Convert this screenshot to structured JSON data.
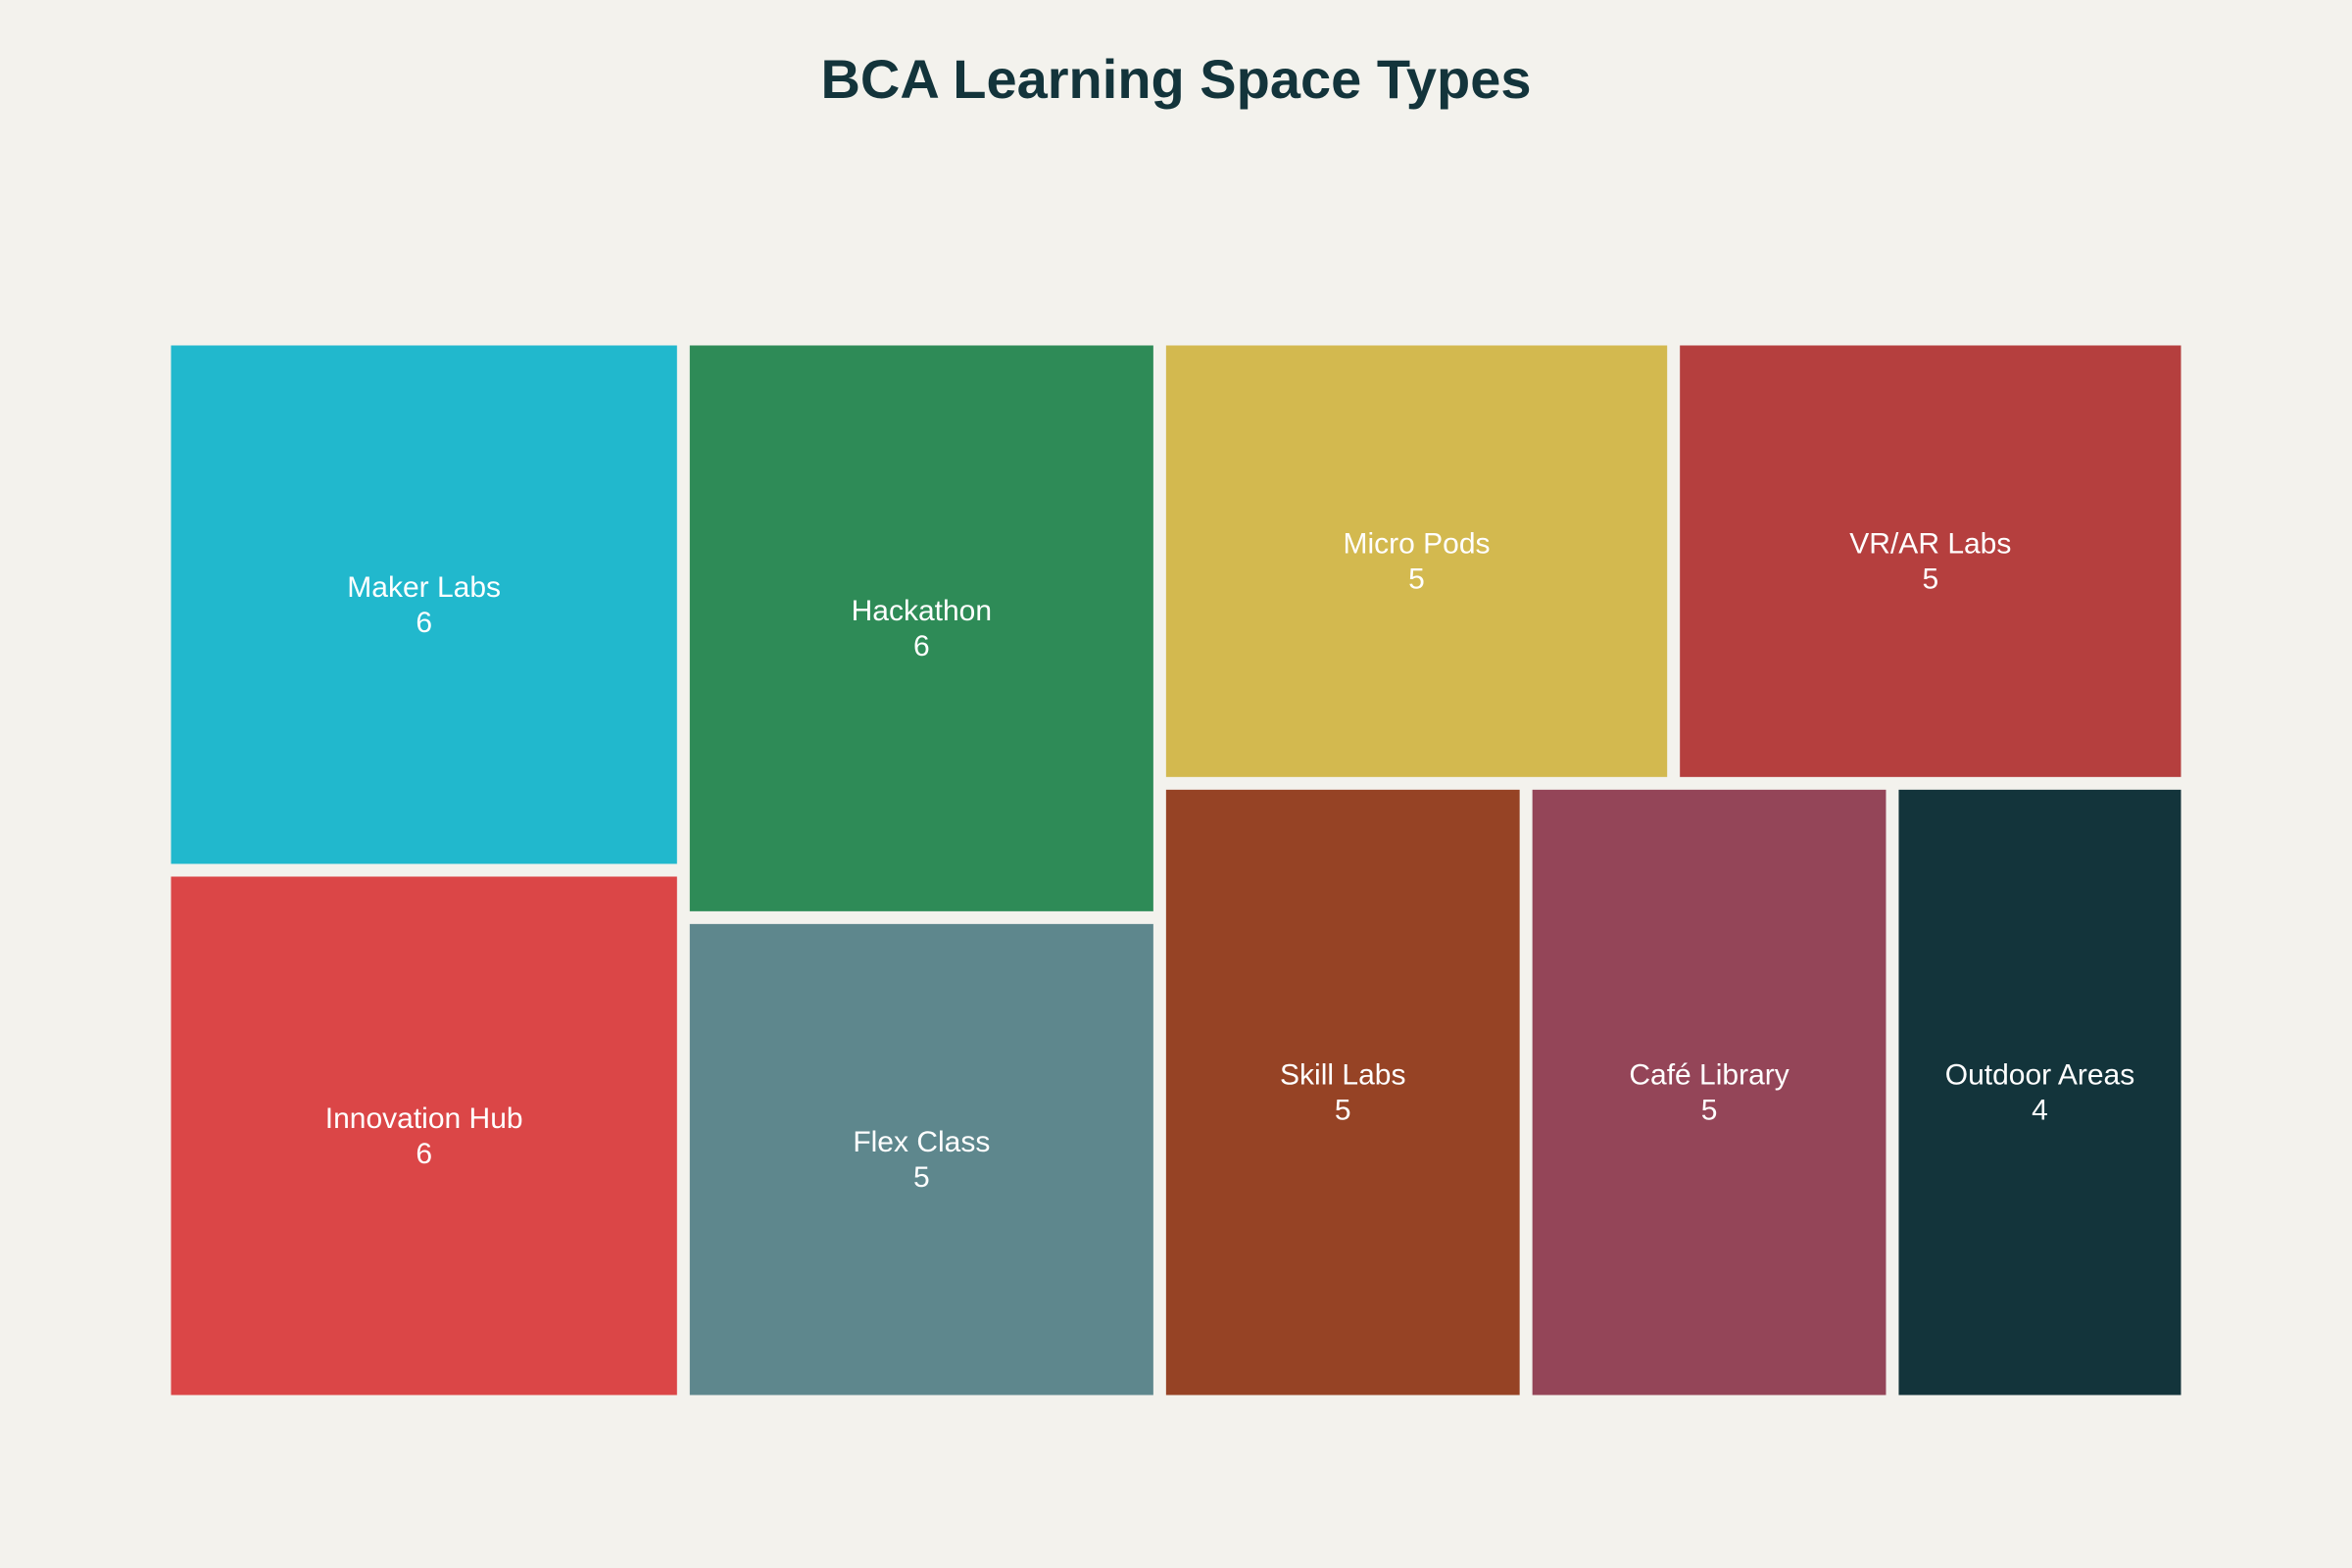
{
  "chart_data": {
    "type": "treemap",
    "title": "BCA Learning Space Types",
    "items": [
      {
        "label": "Maker Labs",
        "value": 6,
        "color": "#21b8cd"
      },
      {
        "label": "Innovation Hub",
        "value": 6,
        "color": "#db4647"
      },
      {
        "label": "Hackathon",
        "value": 6,
        "color": "#2e8b57"
      },
      {
        "label": "Flex Class",
        "value": 5,
        "color": "#5e878d"
      },
      {
        "label": "Micro Pods",
        "value": 5,
        "color": "#d3b94f"
      },
      {
        "label": "VR/AR Labs",
        "value": 5,
        "color": "#b53f3e"
      },
      {
        "label": "Skill Labs",
        "value": 5,
        "color": "#964325"
      },
      {
        "label": "Café Library",
        "value": 5,
        "color": "#944558"
      },
      {
        "label": "Outdoor Areas",
        "value": 4,
        "color": "#13343b"
      }
    ]
  }
}
